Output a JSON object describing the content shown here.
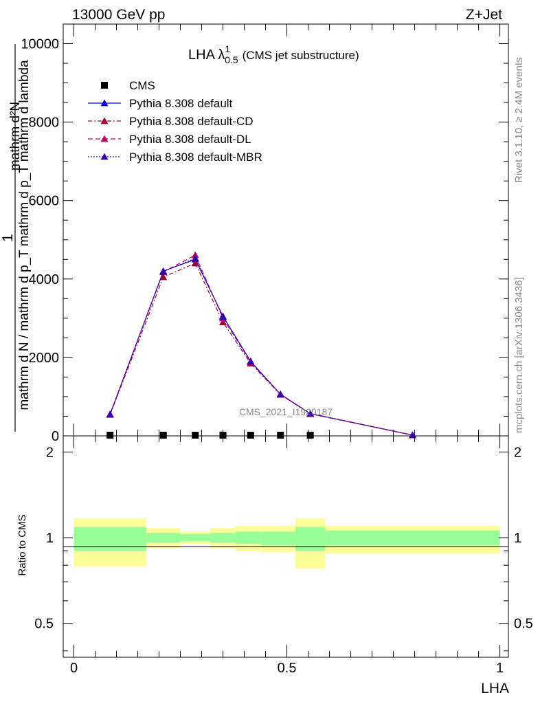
{
  "header": {
    "left": "13000 GeV pp",
    "right": "Z+Jet"
  },
  "title": {
    "main": "LHA λ",
    "sup": "1",
    "sub": "0.5",
    "suffix": "(CMS jet substructure)"
  },
  "side_labels": {
    "rivet": "Rivet 3.1.10, ≥ 2.4M events",
    "mcplots": "mcplots.cern.ch [arXiv:1306.3436]"
  },
  "watermark": "CMS_2021_I1920187",
  "ylabel_main": {
    "numerator": "1",
    "denominator": "mathrm d N / mathrm d p_T mathrm d p_T mathrm d lambda",
    "overlay": "mathrm d²N"
  },
  "ylabel_ratio": "Ratio to CMS",
  "xlabel": "LHA",
  "colors": {
    "cms": "#000000",
    "default": "#0000dd",
    "cd": "#990033",
    "dl": "#bb0066",
    "mbr": "#3300aa",
    "band_inner": "#99ff99",
    "band_outer": "#ffff99"
  },
  "chart_data": [
    {
      "type": "line",
      "panel": "main",
      "x": [
        0.085,
        0.21,
        0.285,
        0.35,
        0.415,
        0.485,
        0.555,
        0.795
      ],
      "xlim": [
        -0.025,
        1.02
      ],
      "ylim": [
        0,
        10500
      ],
      "yticks": [
        0,
        2000,
        4000,
        6000,
        8000,
        10000
      ],
      "yticklabels": [
        "0",
        "2000",
        "4000",
        "6000",
        "8000",
        "10000"
      ],
      "legend_position": "top-left",
      "series": [
        {
          "name": "CMS",
          "marker": "square",
          "color": "#000000",
          "x": [
            0.085,
            0.21,
            0.285,
            0.35,
            0.415,
            0.485,
            0.555
          ],
          "values": [
            10,
            10,
            10,
            10,
            10,
            10,
            10
          ]
        },
        {
          "name": "Pythia 8.308 default",
          "marker": "triangle",
          "dash": "",
          "color": "#0000dd",
          "values": [
            550,
            4200,
            4500,
            3050,
            1900,
            1060,
            570,
            20
          ]
        },
        {
          "name": "Pythia 8.308 default-CD",
          "marker": "triangle",
          "dash": "6,3,2,3",
          "color": "#990033",
          "values": [
            540,
            4050,
            4400,
            2900,
            1850,
            1050,
            560,
            20
          ]
        },
        {
          "name": "Pythia 8.308 default-DL",
          "marker": "triangle",
          "dash": "7,4",
          "color": "#bb0066",
          "values": [
            545,
            4180,
            4610,
            3000,
            1880,
            1060,
            565,
            20
          ]
        },
        {
          "name": "Pythia 8.308 default-MBR",
          "marker": "triangle",
          "dash": "2,2",
          "color": "#3300aa",
          "values": [
            550,
            4190,
            4530,
            3040,
            1900,
            1060,
            570,
            20
          ]
        }
      ]
    },
    {
      "type": "area",
      "panel": "ratio",
      "ylim": [
        0.38,
        2.28
      ],
      "yticks": [
        0.5,
        1,
        2
      ],
      "yticklabels": [
        "0.5",
        "1",
        "2"
      ],
      "xticks": [
        0,
        0.5,
        1
      ],
      "xticklabels": [
        "0",
        "0.5",
        "1"
      ],
      "reference": 1,
      "bins": [
        {
          "lo": 0.0,
          "hi": 0.17,
          "inner": [
            0.9,
            1.09
          ],
          "outer": [
            0.79,
            1.17
          ]
        },
        {
          "lo": 0.17,
          "hi": 0.25,
          "inner": [
            0.96,
            1.04
          ],
          "outer": [
            0.92,
            1.08
          ]
        },
        {
          "lo": 0.25,
          "hi": 0.32,
          "inner": [
            0.97,
            1.03
          ],
          "outer": [
            0.95,
            1.05
          ]
        },
        {
          "lo": 0.32,
          "hi": 0.38,
          "inner": [
            0.96,
            1.04
          ],
          "outer": [
            0.92,
            1.08
          ]
        },
        {
          "lo": 0.38,
          "hi": 0.44,
          "inner": [
            0.95,
            1.05
          ],
          "outer": [
            0.9,
            1.1
          ]
        },
        {
          "lo": 0.44,
          "hi": 0.52,
          "inner": [
            0.94,
            1.05
          ],
          "outer": [
            0.89,
            1.1
          ]
        },
        {
          "lo": 0.52,
          "hi": 0.59,
          "inner": [
            0.9,
            1.09
          ],
          "outer": [
            0.78,
            1.17
          ]
        },
        {
          "lo": 0.59,
          "hi": 1.0,
          "inner": [
            0.94,
            1.06
          ],
          "outer": [
            0.88,
            1.1
          ]
        }
      ]
    }
  ]
}
